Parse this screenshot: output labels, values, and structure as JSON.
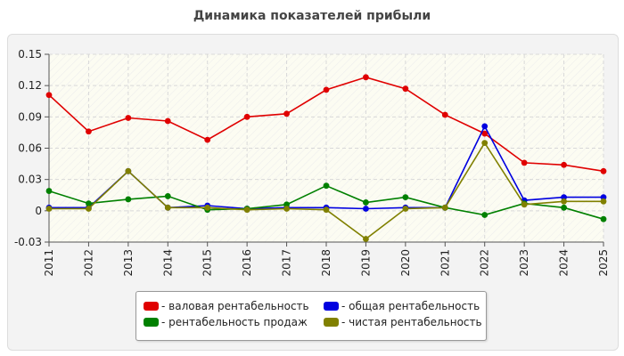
{
  "chart_data": {
    "type": "line",
    "title": "Динамика показателей прибыли",
    "x": [
      "2011",
      "2012",
      "2013",
      "2014",
      "2015",
      "2016",
      "2017",
      "2018",
      "2019",
      "2020",
      "2021",
      "2022",
      "2023",
      "2024",
      "2025"
    ],
    "ylim": [
      -0.03,
      0.15
    ],
    "yticks": [
      -0.03,
      0,
      0.03,
      0.06,
      0.09,
      0.12,
      0.15
    ],
    "ytick_labels": [
      "-0.03",
      "0",
      "0.03",
      "0.06",
      "0.09",
      "0.12",
      "0.15"
    ],
    "grid": true,
    "legend_position": "bottom",
    "series": [
      {
        "name": "- валовая рентабельность",
        "color": "#e00000",
        "values": [
          0.111,
          0.076,
          0.089,
          0.086,
          0.068,
          0.09,
          0.093,
          0.116,
          0.128,
          0.117,
          0.092,
          0.074,
          0.046,
          0.044,
          0.038
        ]
      },
      {
        "name": "- общая рентабельность",
        "color": "#0000e0",
        "values": [
          0.003,
          0.003,
          0.038,
          0.003,
          0.005,
          0.002,
          0.003,
          0.003,
          0.002,
          0.003,
          0.003,
          0.081,
          0.01,
          0.013,
          0.013
        ]
      },
      {
        "name": "- рентабельность продаж",
        "color": "#008000",
        "values": [
          0.019,
          0.007,
          0.011,
          0.014,
          0.001,
          0.002,
          0.006,
          0.024,
          0.008,
          0.013,
          0.003,
          -0.004,
          0.007,
          0.003,
          -0.008
        ]
      },
      {
        "name": "- чистая рентабельность",
        "color": "#808000",
        "values": [
          0.002,
          0.002,
          0.038,
          0.003,
          0.003,
          0.001,
          0.002,
          0.001,
          -0.027,
          0.002,
          0.003,
          0.065,
          0.006,
          0.009,
          0.009
        ]
      }
    ]
  }
}
